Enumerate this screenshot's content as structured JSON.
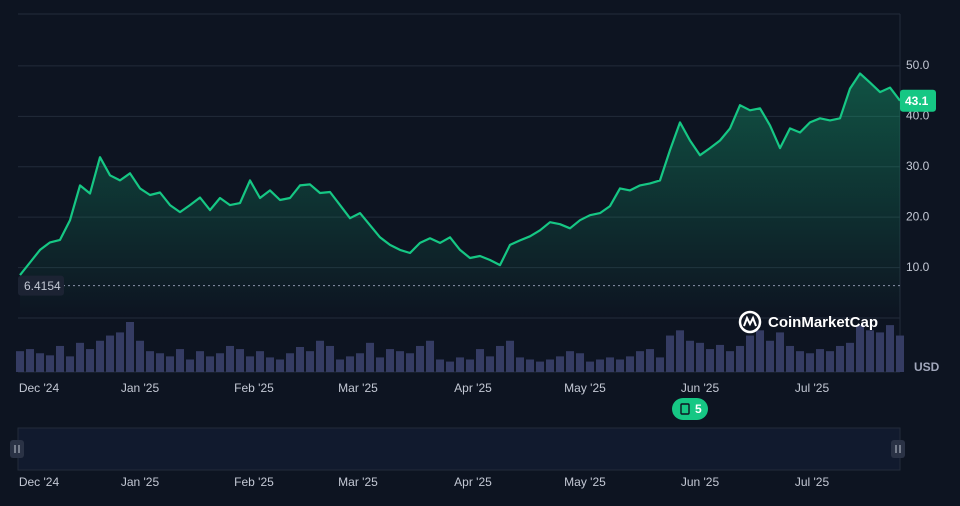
{
  "chart_data": {
    "type": "line",
    "xlim": [
      0,
      88
    ],
    "xticks": [
      {
        "value": 1.9,
        "label": "Dec '24"
      },
      {
        "value": 12,
        "label": "Jan '25"
      },
      {
        "value": 23.4,
        "label": "Feb '25"
      },
      {
        "value": 33.8,
        "label": "Mar '25"
      },
      {
        "value": 45.3,
        "label": "Apr '25"
      },
      {
        "value": 56.5,
        "label": "May '25"
      },
      {
        "value": 68,
        "label": "Jun '25"
      },
      {
        "value": 79.2,
        "label": "Jul '25"
      }
    ],
    "ylim": [
      0,
      60
    ],
    "yticks": [
      {
        "value": 10,
        "label": "10.0"
      },
      {
        "value": 20,
        "label": "20.0"
      },
      {
        "value": 30,
        "label": "30.0"
      },
      {
        "value": 40,
        "label": "40.0"
      },
      {
        "value": 50,
        "label": "50.0"
      }
    ],
    "grid": true,
    "color": "#16c784",
    "values": [
      8.5,
      11,
      13.5,
      15,
      15.5,
      19.4,
      26.3,
      24.7,
      31.9,
      28.3,
      27.3,
      28.7,
      25.7,
      24.4,
      24.9,
      22.4,
      21,
      22.4,
      23.9,
      21.4,
      23.8,
      22.4,
      22.8,
      27.3,
      23.8,
      25.3,
      23.4,
      23.8,
      26.3,
      26.5,
      24.8,
      25,
      22.4,
      19.8,
      20.8,
      18.4,
      16,
      14.5,
      13.5,
      12.9,
      14.9,
      15.8,
      14.9,
      16,
      13.5,
      11.9,
      12.3,
      11.5,
      10.5,
      14.5,
      15.4,
      16.2,
      17.4,
      19,
      18.6,
      17.8,
      19.4,
      20.4,
      20.8,
      22.2,
      25.7,
      25.3,
      26.3,
      26.7,
      27.3,
      33.3,
      38.8,
      35.2,
      32.3,
      33.7,
      35.2,
      37.6,
      42.2,
      41.2,
      41.6,
      38.2,
      33.7,
      37.6,
      36.8,
      38.8,
      39.6,
      39.2,
      39.6,
      45.5,
      48.5,
      46.7,
      44.8,
      45.7,
      43.1
    ],
    "volume_color": "#353c63",
    "volume": [
      20,
      22,
      18,
      16,
      25,
      15,
      28,
      22,
      30,
      35,
      38,
      48,
      30,
      20,
      18,
      15,
      22,
      12,
      20,
      15,
      18,
      25,
      22,
      15,
      20,
      14,
      12,
      18,
      24,
      20,
      30,
      25,
      12,
      15,
      18,
      28,
      14,
      22,
      20,
      18,
      25,
      30,
      12,
      10,
      14,
      12,
      22,
      15,
      25,
      30,
      14,
      12,
      10,
      12,
      15,
      20,
      18,
      10,
      12,
      14,
      12,
      15,
      20,
      22,
      14,
      35,
      40,
      30,
      28,
      22,
      26,
      20,
      25,
      35,
      40,
      30,
      38,
      25,
      20,
      18,
      22,
      20,
      25,
      28,
      45,
      40,
      38,
      45,
      35
    ],
    "last_price": 43.1,
    "low": 6.4154,
    "currency": "USD",
    "watermark": "CoinMarketCap",
    "news_count": 5,
    "navigator_color": "#4f6bd8"
  }
}
